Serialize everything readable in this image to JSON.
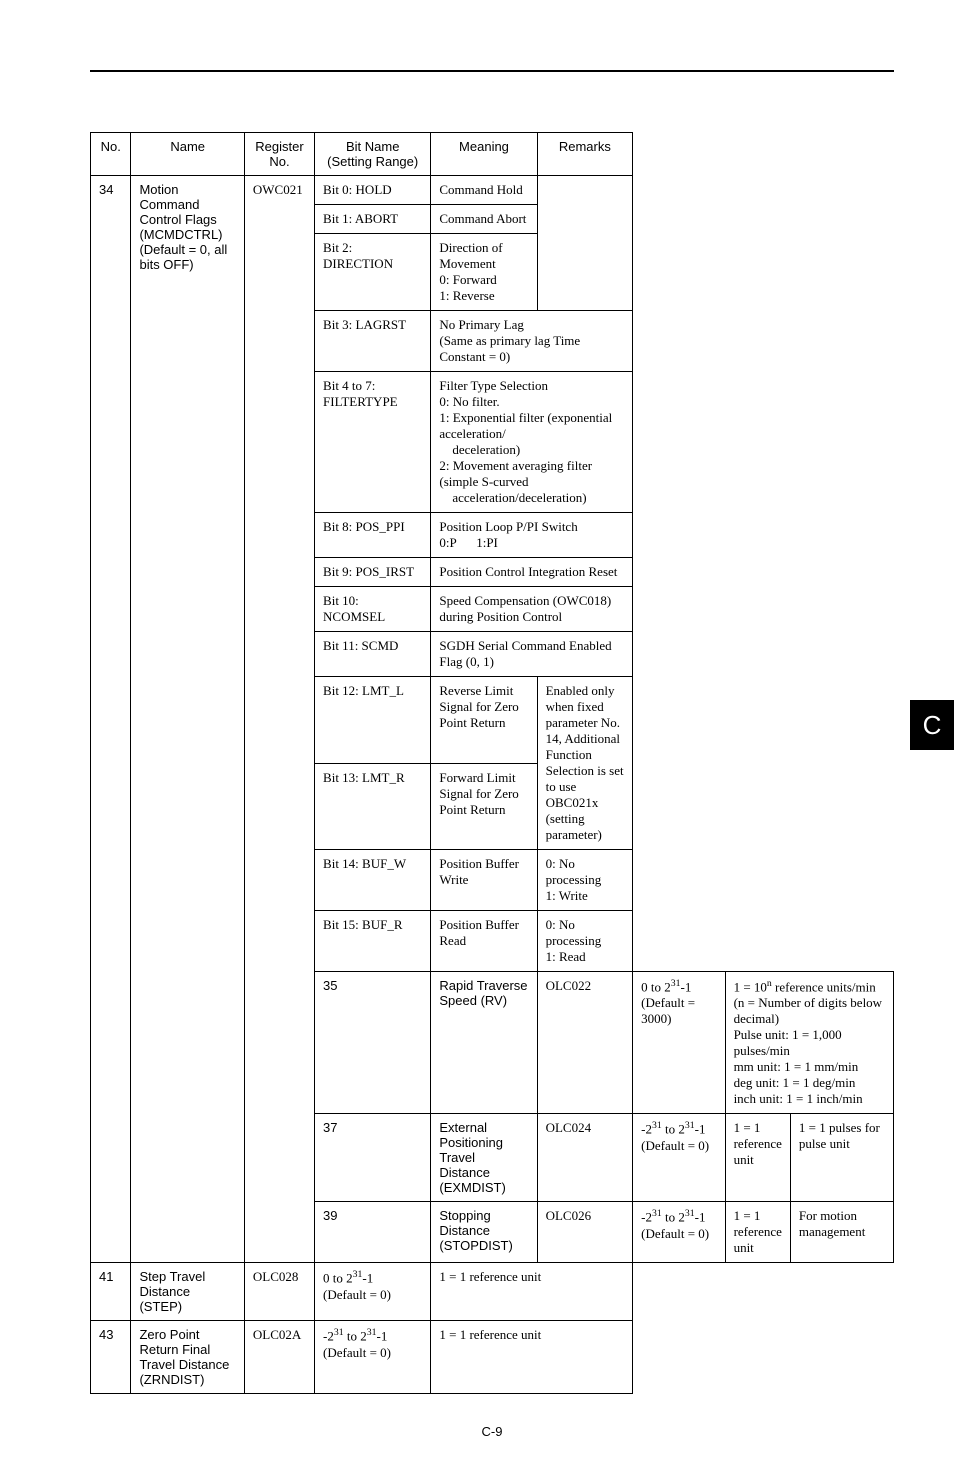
{
  "header": {
    "no": "No.",
    "name": "Name",
    "register": "Register\nNo.",
    "bitname": "Bit Name\n(Setting Range)",
    "meaning": "Meaning",
    "remarks": "Remarks"
  },
  "rows": {
    "r34": {
      "no": "34",
      "name": "Motion Command Control Flags (MCMDCTRL)\n(Default = 0, all bits OFF)",
      "reg": "OWC021",
      "bits": {
        "b0": {
          "bit": "Bit 0: HOLD",
          "meaning": "Command Hold",
          "remarks": ""
        },
        "b1": {
          "bit": "Bit 1: ABORT",
          "meaning": "Command Abort",
          "remarks": ""
        },
        "b2": {
          "bit": "Bit 2: DIRECTION",
          "meaning": "Direction of Movement\n0: Forward\n1: Reverse",
          "remarks": ""
        },
        "b3": {
          "bit": "Bit 3: LAGRST",
          "meaning": "No Primary Lag\n(Same as primary lag Time Constant = 0)"
        },
        "b4": {
          "bit": "Bit 4 to 7: FILTERTYPE",
          "meaning": "Filter Type Selection\n0: No filter.\n1: Exponential filter (exponential acceleration/deceleration)\n2: Movement averaging filter (simple S-curved acceleration/deceleration)"
        },
        "b8": {
          "bit": "Bit 8: POS_PPI",
          "meaning": "Position Loop P/PI Switch\n0:P      1:PI"
        },
        "b9": {
          "bit": "Bit 9: POS_IRST",
          "meaning": "Position Control Integration Reset"
        },
        "b10": {
          "bit": "Bit 10: NCOMSEL",
          "meaning": "Speed Compensation (OWC018) during Position Control"
        },
        "b11": {
          "bit": "Bit 11: SCMD",
          "meaning": "SGDH Serial Command Enabled Flag (0, 1)"
        },
        "b12": {
          "bit": "Bit 12: LMT_L",
          "meaning": "Reverse Limit Signal for Zero Point Return",
          "remarks": "Enabled only when fixed parameter No. 14, Additional Function Selection is set to use OBC021x (setting parameter)"
        },
        "b13": {
          "bit": "Bit 13: LMT_R",
          "meaning": "Forward Limit Signal for Zero Point Return"
        },
        "b14": {
          "bit": "Bit 14: BUF_W",
          "meaning": "Position Buffer Write",
          "remarks": "0: No processing\n1: Write"
        },
        "b15": {
          "bit": "Bit 15: BUF_R",
          "meaning": "Position Buffer Read",
          "remarks": "0: No processing\n1: Read"
        }
      }
    },
    "r35": {
      "no": "35",
      "name": "Rapid Traverse Speed (RV)",
      "reg": "OLC022",
      "bit_html": "0 to 2<sup>31</sup>-1<br>(Default = 3000)",
      "meaning_html": "1 = 10<sup>n</sup> reference units/min<br>(n = Number of digits below decimal)<br>Pulse unit: 1 = 1,000 pulses/min<br>mm unit: 1 = 1 mm/min<br>deg unit: 1 = 1 deg/min<br>inch unit: 1 = 1 inch/min"
    },
    "r37": {
      "no": "37",
      "name": "External Positioning Travel Distance (EXMDIST)",
      "reg": "OLC024",
      "bit_html": "-2<sup>31</sup> to 2<sup>31</sup>-1<br>(Default = 0)",
      "meaning": "1 = 1 reference unit",
      "remarks": "1 = 1 pulses for pulse unit"
    },
    "r39": {
      "no": "39",
      "name": "Stopping Distance (STOPDIST)",
      "reg": "OLC026",
      "bit_html": "-2<sup>31</sup> to 2<sup>31</sup>-1<br>(Default = 0)",
      "meaning": "1 = 1 reference unit",
      "remarks": "For motion management"
    },
    "r41": {
      "no": "41",
      "name": "Step Travel Distance (STEP)",
      "reg": "OLC028",
      "bit_html": "0 to 2<sup>31</sup>-1<br>(Default = 0)",
      "meaning": "1 = 1 reference unit"
    },
    "r43": {
      "no": "43",
      "name": "Zero Point Return Final Travel Distance (ZRNDIST)",
      "reg": "OLC02A",
      "bit_html": "-2<sup>31</sup> to 2<sup>31</sup>-1<br>(Default = 0)",
      "meaning": "1 = 1 reference unit"
    }
  },
  "sidetab": "C",
  "footer": "C-9",
  "styles": {
    "font_size_body": 13,
    "font_size_sidetab": 26,
    "colors": {
      "text": "#000000",
      "background": "#ffffff",
      "sidetab_bg": "#000000",
      "sidetab_fg": "#ffffff",
      "border": "#000000"
    }
  }
}
